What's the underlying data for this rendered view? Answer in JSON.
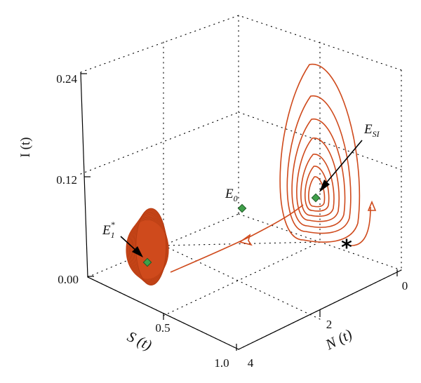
{
  "chart_data": {
    "type": "line",
    "projection": "3d",
    "axes": {
      "I": {
        "label": "I (t)",
        "ticks": [
          "0.00",
          "0.12",
          "0.24"
        ],
        "lim": [
          0,
          0.24
        ]
      },
      "S": {
        "label": "S (t)",
        "ticks": [
          "0.5",
          "1.0"
        ],
        "lim": [
          0,
          1.0
        ]
      },
      "N": {
        "label": "N (t)",
        "ticks": [
          "0",
          "2",
          "4"
        ],
        "lim": [
          0,
          4
        ]
      }
    },
    "grid": true,
    "equilibria": [
      {
        "name": "E_SI",
        "label_main": "E",
        "label_sub": "SI",
        "label_sup": "",
        "arrow": true
      },
      {
        "name": "E_0",
        "label_main": "E",
        "label_sub": "0",
        "label_sup": "",
        "arrow": false
      },
      {
        "name": "E_1*",
        "label_main": "E",
        "label_sub": "1",
        "label_sup": "*",
        "arrow": true
      }
    ],
    "initial_point_marker": "*",
    "colors": {
      "trajectory": "#cf4a1c",
      "equilibrium": "#3fa04a",
      "axes": "#000000"
    }
  }
}
